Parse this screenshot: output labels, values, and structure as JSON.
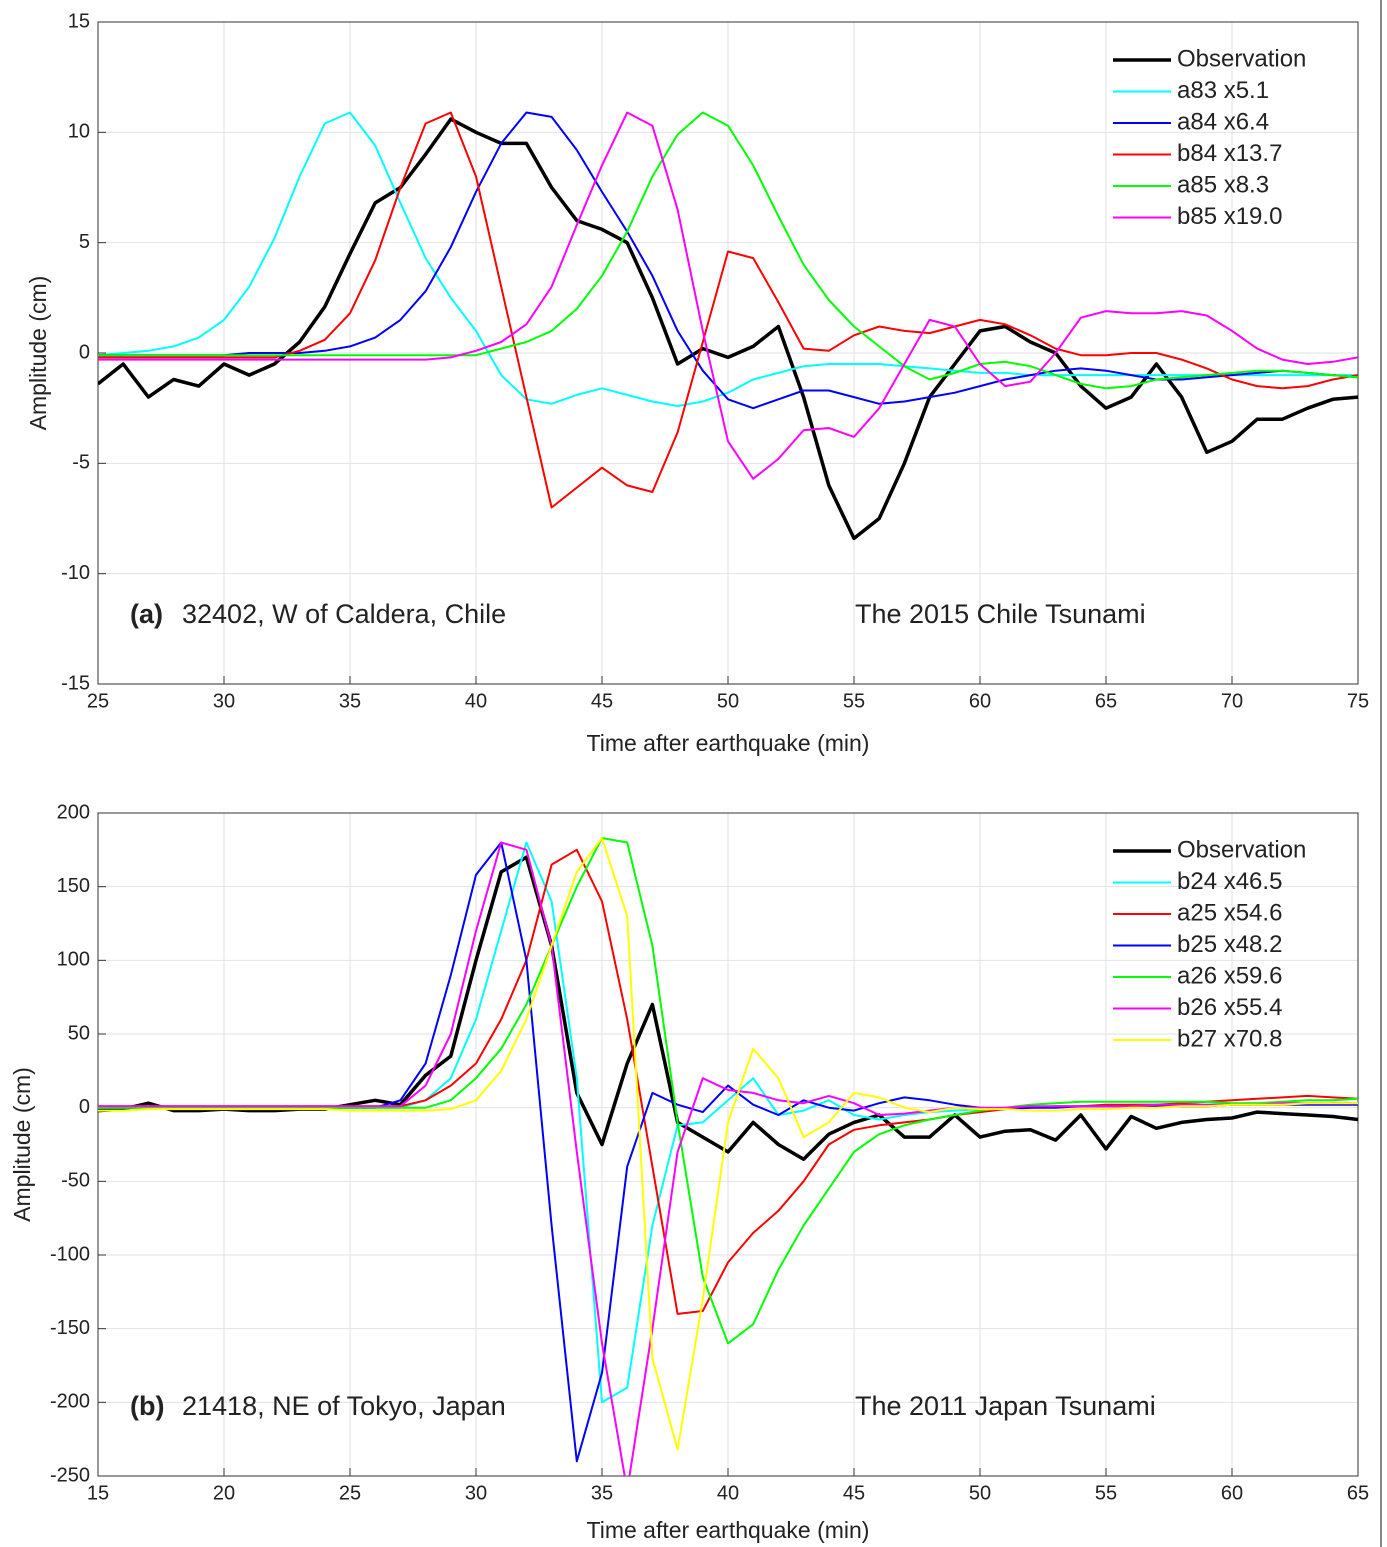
{
  "chart_data": [
    {
      "type": "line",
      "xlabel": "Time after earthquake (min)",
      "ylabel": "Amplitude (cm)",
      "panel_label": "(a)",
      "station": "32402, W of Caldera, Chile",
      "event": "The 2015 Chile Tsunami",
      "xlim": [
        25,
        75
      ],
      "ylim": [
        -15,
        15
      ],
      "xticks": [
        25,
        30,
        35,
        40,
        45,
        50,
        55,
        60,
        65,
        70,
        75
      ],
      "yticks": [
        -15,
        -10,
        -5,
        0,
        5,
        10,
        15
      ],
      "grid": true,
      "legend": "northeast",
      "x": [
        25,
        26,
        27,
        28,
        29,
        30,
        31,
        32,
        33,
        34,
        35,
        36,
        37,
        38,
        39,
        40,
        41,
        42,
        43,
        44,
        45,
        46,
        47,
        48,
        49,
        50,
        51,
        52,
        53,
        54,
        55,
        56,
        57,
        58,
        59,
        60,
        61,
        62,
        63,
        64,
        65,
        66,
        67,
        68,
        69,
        70,
        71,
        72,
        73,
        74,
        75
      ],
      "series": [
        {
          "name": "Observation",
          "color": "#000000",
          "values": [
            -1.4,
            -0.5,
            -2.0,
            -1.2,
            -1.5,
            -0.5,
            -1.0,
            -0.5,
            0.5,
            2.1,
            4.5,
            6.8,
            7.5,
            9.0,
            10.6,
            10.0,
            9.5,
            9.5,
            7.5,
            6.0,
            5.6,
            5.0,
            2.5,
            -0.5,
            0.2,
            -0.2,
            0.3,
            1.2,
            -2.0,
            -6.0,
            -8.4,
            -7.5,
            -5.0,
            -2.0,
            -0.5,
            1.0,
            1.2,
            0.5,
            0.0,
            -1.5,
            -2.5,
            -2.0,
            -0.5,
            -2.0,
            -4.5,
            -4.0,
            -3.0,
            -3.0,
            -2.5,
            -2.1,
            -2.0
          ]
        },
        {
          "name": "a83 x5.1",
          "color": "#00ffff",
          "values": [
            -0.1,
            0,
            0.1,
            0.3,
            0.7,
            1.5,
            3.0,
            5.2,
            8.0,
            10.4,
            10.9,
            9.4,
            6.8,
            4.3,
            2.5,
            1.0,
            -1.0,
            -2.1,
            -2.3,
            -1.9,
            -1.6,
            -1.9,
            -2.2,
            -2.4,
            -2.2,
            -1.8,
            -1.2,
            -0.9,
            -0.6,
            -0.5,
            -0.5,
            -0.5,
            -0.6,
            -0.7,
            -0.8,
            -0.9,
            -0.9,
            -1.0,
            -1.0,
            -1.0,
            -1.0,
            -1.0,
            -1.0,
            -1.0,
            -1.0,
            -1.0,
            -1.0,
            -1.0,
            -1.0,
            -1.0,
            -1.0
          ]
        },
        {
          "name": "a84 x6.4",
          "color": "#0000ff",
          "values": [
            -0.1,
            -0.1,
            -0.1,
            -0.1,
            -0.1,
            -0.1,
            0,
            0,
            0,
            0.1,
            0.3,
            0.7,
            1.5,
            2.8,
            4.8,
            7.3,
            9.5,
            10.9,
            10.7,
            9.2,
            7.3,
            5.5,
            3.5,
            1.0,
            -0.8,
            -2.1,
            -2.5,
            -2.1,
            -1.7,
            -1.7,
            -2.0,
            -2.3,
            -2.2,
            -2.0,
            -1.8,
            -1.5,
            -1.2,
            -1.0,
            -0.8,
            -0.7,
            -0.8,
            -1.0,
            -1.2,
            -1.2,
            -1.1,
            -1.0,
            -0.9,
            -0.8,
            -0.9,
            -1.0,
            -1.1
          ]
        },
        {
          "name": "b84 x13.7",
          "color": "#ff0000",
          "values": [
            -0.2,
            -0.2,
            -0.2,
            -0.2,
            -0.2,
            -0.2,
            -0.2,
            -0.2,
            0.1,
            0.6,
            1.8,
            4.2,
            7.5,
            10.4,
            10.9,
            8.0,
            3.0,
            -2.0,
            -7.0,
            -6.1,
            -5.2,
            -6.0,
            -6.3,
            -3.6,
            0.5,
            4.6,
            4.3,
            2.3,
            0.2,
            0.1,
            0.8,
            1.2,
            1.0,
            0.9,
            1.2,
            1.5,
            1.3,
            0.8,
            0.2,
            -0.1,
            -0.1,
            0.0,
            0.0,
            -0.3,
            -0.7,
            -1.2,
            -1.5,
            -1.6,
            -1.5,
            -1.2,
            -1.0
          ]
        },
        {
          "name": "a85 x8.3",
          "color": "#00ff00",
          "values": [
            -0.1,
            -0.1,
            -0.1,
            -0.1,
            -0.1,
            -0.1,
            -0.1,
            -0.1,
            -0.1,
            -0.1,
            -0.1,
            -0.1,
            -0.1,
            -0.1,
            -0.1,
            -0.1,
            0.2,
            0.5,
            1.0,
            2.0,
            3.5,
            5.5,
            8.0,
            9.9,
            10.9,
            10.3,
            8.5,
            6.2,
            4.0,
            2.4,
            1.2,
            0.3,
            -0.6,
            -1.2,
            -0.9,
            -0.5,
            -0.4,
            -0.6,
            -1.0,
            -1.4,
            -1.6,
            -1.5,
            -1.2,
            -1.1,
            -1.0,
            -0.9,
            -0.8,
            -0.8,
            -0.9,
            -1.0,
            -1.1
          ]
        },
        {
          "name": "b85 x19.0",
          "color": "#ff00ff",
          "values": [
            -0.3,
            -0.3,
            -0.3,
            -0.3,
            -0.3,
            -0.3,
            -0.3,
            -0.3,
            -0.3,
            -0.3,
            -0.3,
            -0.3,
            -0.3,
            -0.3,
            -0.2,
            0.1,
            0.5,
            1.3,
            3.0,
            5.8,
            8.5,
            10.9,
            10.3,
            6.5,
            1.0,
            -4.0,
            -5.7,
            -4.8,
            -3.5,
            -3.4,
            -3.8,
            -2.5,
            -0.5,
            1.5,
            1.2,
            -0.5,
            -1.5,
            -1.3,
            0.0,
            1.6,
            1.9,
            1.8,
            1.8,
            1.9,
            1.7,
            1.0,
            0.2,
            -0.3,
            -0.5,
            -0.4,
            -0.2
          ]
        }
      ]
    },
    {
      "type": "line",
      "xlabel": "Time after earthquake (min)",
      "ylabel": "Amplitude (cm)",
      "panel_label": "(b)",
      "station": "21418,  NE of Tokyo, Japan",
      "event": "The 2011 Japan Tsunami",
      "xlim": [
        15,
        65
      ],
      "ylim": [
        -250,
        200
      ],
      "xticks": [
        15,
        20,
        25,
        30,
        35,
        40,
        45,
        50,
        55,
        60,
        65
      ],
      "yticks": [
        -250,
        -200,
        -150,
        -100,
        -50,
        0,
        50,
        100,
        150,
        200
      ],
      "grid": true,
      "legend": "northeast",
      "x": [
        15,
        16,
        17,
        18,
        19,
        20,
        21,
        22,
        23,
        24,
        25,
        26,
        27,
        28,
        29,
        30,
        31,
        32,
        33,
        34,
        35,
        36,
        37,
        38,
        39,
        40,
        41,
        42,
        43,
        44,
        45,
        46,
        47,
        48,
        49,
        50,
        51,
        52,
        53,
        54,
        55,
        56,
        57,
        58,
        59,
        60,
        61,
        62,
        63,
        64,
        65
      ],
      "series": [
        {
          "name": "Observation",
          "color": "#000000",
          "values": [
            -2,
            -1,
            3,
            -2,
            -2,
            -1,
            -2,
            -2,
            -1,
            -1,
            2,
            5,
            2,
            22,
            35,
            100,
            160,
            170,
            110,
            10,
            -25,
            30,
            70,
            -10,
            -20,
            -30,
            -10,
            -25,
            -35,
            -18,
            -10,
            -5,
            -20,
            -20,
            -5,
            -20,
            -16,
            -15,
            -22,
            -5,
            -28,
            -6,
            -14,
            -10,
            -8,
            -7,
            -3,
            -4,
            -5,
            -6,
            -8
          ]
        },
        {
          "name": "b24 x46.5",
          "color": "#00ffff",
          "values": [
            0,
            0,
            0,
            0,
            0,
            0,
            0,
            0,
            0,
            0,
            0,
            0,
            0,
            5,
            20,
            60,
            120,
            180,
            140,
            20,
            -200,
            -190,
            -80,
            -12,
            -10,
            5,
            20,
            -5,
            -2,
            5,
            -5,
            -8,
            -5,
            -3,
            -2,
            -1,
            0,
            0,
            1,
            1,
            1,
            2,
            2,
            2,
            2,
            3,
            3,
            3,
            3,
            3,
            3
          ]
        },
        {
          "name": "a25 x54.6",
          "color": "#ff0000",
          "values": [
            1,
            1,
            1,
            1,
            1,
            1,
            1,
            1,
            1,
            1,
            1,
            1,
            1,
            5,
            15,
            30,
            60,
            100,
            165,
            175,
            140,
            60,
            -40,
            -140,
            -138,
            -105,
            -85,
            -70,
            -50,
            -25,
            -15,
            -12,
            -10,
            -8,
            -5,
            -3,
            -1,
            0,
            1,
            1,
            2,
            2,
            2,
            3,
            4,
            5,
            6,
            7,
            8,
            7,
            6
          ]
        },
        {
          "name": "b25 x48.2",
          "color": "#0000ff",
          "values": [
            0,
            0,
            0,
            0,
            0,
            0,
            0,
            0,
            0,
            0,
            0,
            0,
            5,
            30,
            90,
            158,
            180,
            100,
            -80,
            -240,
            -180,
            -40,
            10,
            2,
            -3,
            15,
            2,
            -5,
            5,
            0,
            -2,
            3,
            7,
            5,
            2,
            0,
            -1,
            0,
            0,
            1,
            1,
            1,
            1,
            1,
            1,
            2,
            2,
            2,
            2,
            2,
            2
          ]
        },
        {
          "name": "a26 x59.6",
          "color": "#00ff00",
          "values": [
            0,
            0,
            0,
            0,
            0,
            0,
            0,
            0,
            0,
            0,
            0,
            0,
            0,
            0,
            5,
            20,
            40,
            70,
            110,
            150,
            183,
            180,
            110,
            -10,
            -115,
            -160,
            -147,
            -110,
            -80,
            -55,
            -30,
            -18,
            -12,
            -8,
            -5,
            -2,
            0,
            2,
            3,
            4,
            4,
            4,
            4,
            4,
            4,
            3,
            3,
            4,
            5,
            5,
            6
          ]
        },
        {
          "name": "b26 x55.4",
          "color": "#ff00ff",
          "values": [
            1,
            1,
            1,
            1,
            1,
            1,
            1,
            1,
            1,
            1,
            1,
            1,
            1,
            15,
            50,
            120,
            180,
            175,
            110,
            -30,
            -160,
            -260,
            -150,
            -30,
            20,
            12,
            10,
            5,
            3,
            8,
            3,
            -5,
            -4,
            -2,
            0,
            0,
            0,
            1,
            1,
            1,
            1,
            1,
            2,
            2,
            2,
            2,
            2,
            3,
            3,
            3,
            3
          ]
        },
        {
          "name": "b27 x70.8",
          "color": "#ffff00",
          "values": [
            -2,
            -2,
            -1,
            -1,
            -1,
            -1,
            -1,
            -1,
            -1,
            -1,
            -2,
            -2,
            -2,
            -2,
            -1,
            5,
            25,
            60,
            110,
            160,
            183,
            130,
            -170,
            -232,
            -130,
            -10,
            40,
            20,
            -20,
            -10,
            10,
            7,
            0,
            -3,
            0,
            -1,
            -1,
            -2,
            -2,
            -1,
            -1,
            0,
            0,
            1,
            1,
            2,
            2,
            2,
            3,
            3,
            3
          ]
        }
      ]
    }
  ]
}
